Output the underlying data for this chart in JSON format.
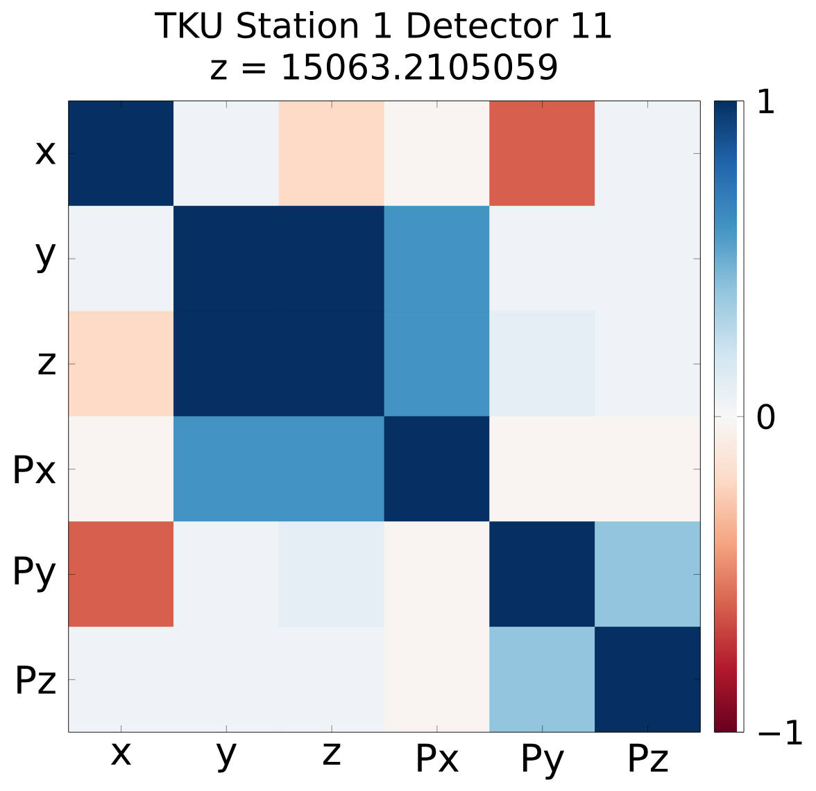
{
  "chart_data": {
    "type": "heatmap",
    "title": "TKU Station 1 Detector 11",
    "subtitle": "z = 15063.2105059",
    "categories": [
      "x",
      "y",
      "z",
      "Px",
      "Py",
      "Pz"
    ],
    "y_categories": [
      "x",
      "y",
      "z",
      "Px",
      "Py",
      "Pz"
    ],
    "cells": [
      [
        1,
        0.05,
        -0.2,
        -0.02,
        -0.6,
        0.05
      ],
      [
        0.05,
        1,
        1,
        0.6,
        0.05,
        0.05
      ],
      [
        -0.2,
        1,
        1,
        0.6,
        0.1,
        0.05
      ],
      [
        -0.02,
        0.6,
        0.6,
        1,
        -0.02,
        -0.02
      ],
      [
        -0.6,
        0.05,
        0.1,
        -0.02,
        1,
        0.4
      ],
      [
        0.05,
        0.05,
        0.05,
        -0.02,
        0.4,
        1
      ]
    ],
    "clim": [
      -1,
      1
    ],
    "cticks": [
      1,
      0,
      {
        "value": -1,
        "label": "−1"
      }
    ]
  }
}
